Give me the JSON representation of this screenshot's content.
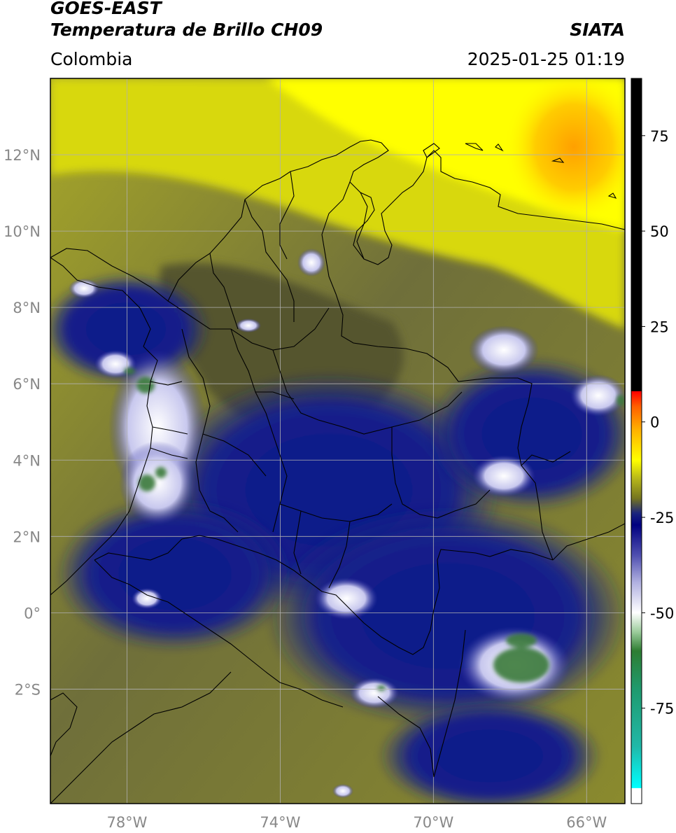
{
  "header": {
    "satellite": "GOES-EAST",
    "product": "Temperatura de Brillo CH09",
    "organization": "SIATA",
    "region": "Colombia",
    "timestamp": "2025-01-25 01:19"
  },
  "map": {
    "extent": {
      "lon_min": -80,
      "lon_max": -65,
      "lat_min": -5,
      "lat_max": 14
    },
    "lat_ticks": [
      {
        "value": 12,
        "label": "12°N"
      },
      {
        "value": 10,
        "label": "10°N"
      },
      {
        "value": 8,
        "label": "8°N"
      },
      {
        "value": 6,
        "label": "6°N"
      },
      {
        "value": 4,
        "label": "4°N"
      },
      {
        "value": 2,
        "label": "2°N"
      },
      {
        "value": 0,
        "label": "0°"
      },
      {
        "value": -2,
        "label": "2°S"
      }
    ],
    "lon_ticks": [
      {
        "value": -78,
        "label": "78°W"
      },
      {
        "value": -74,
        "label": "74°W"
      },
      {
        "value": -70,
        "label": "70°W"
      },
      {
        "value": -66,
        "label": "66°W"
      }
    ],
    "grid": true,
    "colors": {
      "grid": "#b0b0b0",
      "border": "#000000",
      "tick_text": "#888888"
    }
  },
  "colorbar": {
    "range": [
      -100,
      90
    ],
    "ticks": [
      {
        "value": 75,
        "label": "75"
      },
      {
        "value": 50,
        "label": "50"
      },
      {
        "value": 25,
        "label": "25"
      },
      {
        "value": 0,
        "label": "0"
      },
      {
        "value": -25,
        "label": "-25"
      },
      {
        "value": -50,
        "label": "-50"
      },
      {
        "value": -75,
        "label": "-75"
      }
    ],
    "stops": [
      {
        "v": -100,
        "c": "#ffffff"
      },
      {
        "v": -96,
        "c": "#ffffff"
      },
      {
        "v": -95.9,
        "c": "#00ffff"
      },
      {
        "v": -85,
        "c": "#20b8a8"
      },
      {
        "v": -70,
        "c": "#1f9a6e"
      },
      {
        "v": -60,
        "c": "#2e7d32"
      },
      {
        "v": -55,
        "c": "#9ccc9c"
      },
      {
        "v": -50,
        "c": "#ffffff"
      },
      {
        "v": -42,
        "c": "#b0b0e0"
      },
      {
        "v": -35,
        "c": "#5050b0"
      },
      {
        "v": -27,
        "c": "#000080"
      },
      {
        "v": -24,
        "c": "#1a237e"
      },
      {
        "v": -20,
        "c": "#757520"
      },
      {
        "v": -15,
        "c": "#b5b51a"
      },
      {
        "v": -10,
        "c": "#ffff00"
      },
      {
        "v": -2,
        "c": "#ffb000"
      },
      {
        "v": 4,
        "c": "#ff6000"
      },
      {
        "v": 8,
        "c": "#ff0000"
      },
      {
        "v": 8.1,
        "c": "#000000"
      },
      {
        "v": 90,
        "c": "#000000"
      }
    ]
  }
}
